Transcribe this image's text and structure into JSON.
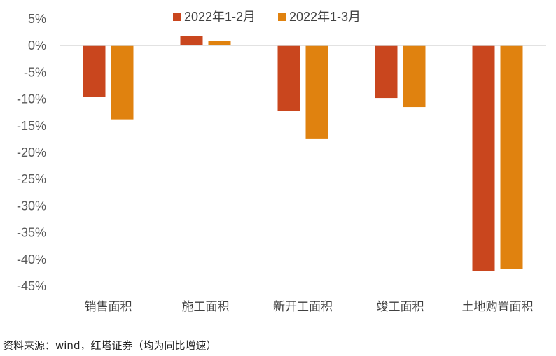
{
  "chart_data": {
    "type": "bar",
    "categories": [
      "销售面积",
      "施工面积",
      "新开工面积",
      "竣工面积",
      "土地购置面积"
    ],
    "series": [
      {
        "name": "2022年1-2月",
        "color": "#C9461E",
        "values": [
          -9.6,
          1.8,
          -12.2,
          -9.8,
          -42.2
        ]
      },
      {
        "name": "2022年1-3月",
        "color": "#E0820F",
        "values": [
          -13.8,
          0.9,
          -17.5,
          -11.5,
          -41.8
        ]
      }
    ],
    "ylim": [
      -45,
      5
    ],
    "yticks": [
      5,
      0,
      -5,
      -10,
      -15,
      -20,
      -25,
      -30,
      -35,
      -40,
      -45
    ],
    "ytick_labels": [
      "5%",
      "0%",
      "-5%",
      "-10%",
      "-15%",
      "-20%",
      "-25%",
      "-30%",
      "-35%",
      "-40%",
      "-45%"
    ],
    "legend_position": "top",
    "grid": false
  },
  "source": "资料来源：wind，红塔证券（均为同比增速）"
}
